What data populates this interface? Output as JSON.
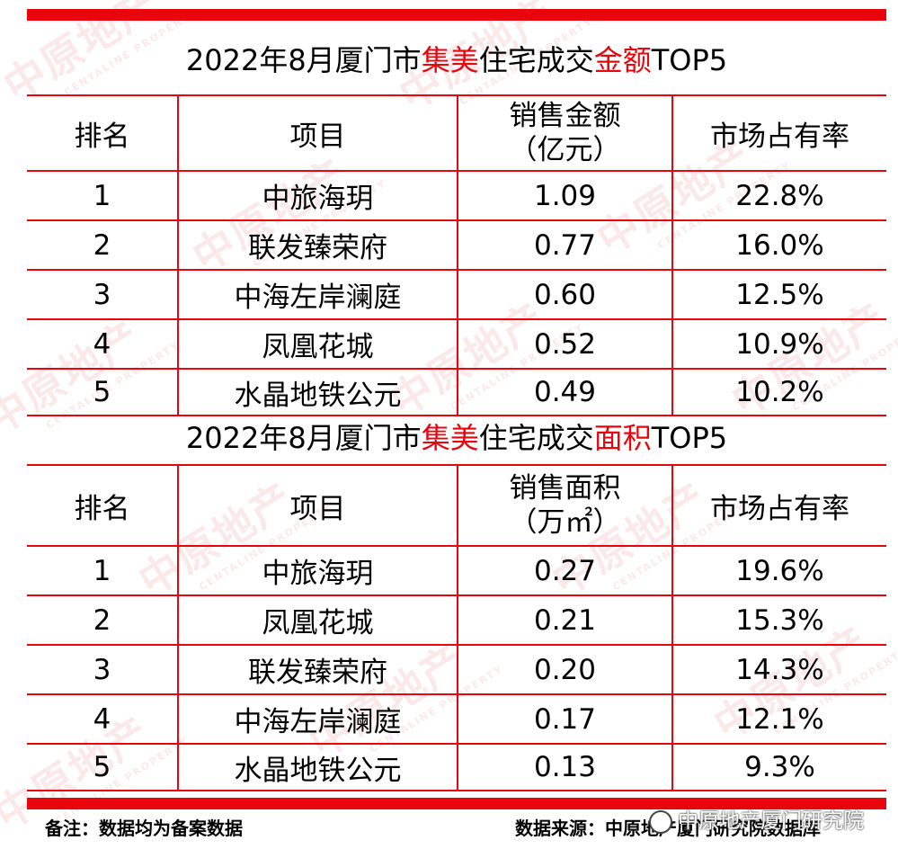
{
  "watermark": {
    "cn": "中原地产",
    "en": "CENTALINE PROPERTY"
  },
  "amount_table": {
    "title_parts": [
      "2022年8月厦门市",
      "集美",
      "住宅成交",
      "金额",
      "TOP5"
    ],
    "headers": {
      "rank": "排名",
      "project": "项目",
      "metric_line1": "销售金额",
      "metric_line2": "（亿元）",
      "share": "市场占有率"
    },
    "rows": [
      {
        "rank": "1",
        "project": "中旅海玥",
        "value": "1.09",
        "share": "22.8%"
      },
      {
        "rank": "2",
        "project": "联发臻荣府",
        "value": "0.77",
        "share": "16.0%"
      },
      {
        "rank": "3",
        "project": "中海左岸澜庭",
        "value": "0.60",
        "share": "12.5%"
      },
      {
        "rank": "4",
        "project": "凤凰花城",
        "value": "0.52",
        "share": "10.9%"
      },
      {
        "rank": "5",
        "project": "水晶地铁公元",
        "value": "0.49",
        "share": "10.2%"
      }
    ]
  },
  "area_table": {
    "title_parts": [
      "2022年8月厦门市",
      "集美",
      "住宅成交",
      "面积",
      "TOP5"
    ],
    "headers": {
      "rank": "排名",
      "project": "项目",
      "metric_line1": "销售面积",
      "metric_line2": "（万㎡）",
      "share": "市场占有率"
    },
    "rows": [
      {
        "rank": "1",
        "project": "中旅海玥",
        "value": "0.27",
        "share": "19.6%"
      },
      {
        "rank": "2",
        "project": "凤凰花城",
        "value": "0.21",
        "share": "15.3%"
      },
      {
        "rank": "3",
        "project": "联发臻荣府",
        "value": "0.20",
        "share": "14.3%"
      },
      {
        "rank": "4",
        "project": "中海左岸澜庭",
        "value": "0.17",
        "share": "12.1%"
      },
      {
        "rank": "5",
        "project": "水晶地铁公元",
        "value": "0.13",
        "share": "9.3%"
      }
    ]
  },
  "footer": {
    "note": "备注：数据均为备案数据",
    "source": "数据来源：中原地产厦门研究院数据库",
    "brand": "中原地产厦门研究院"
  },
  "colors": {
    "accent": "#e8050c",
    "text": "#000000",
    "background": "#ffffff"
  }
}
